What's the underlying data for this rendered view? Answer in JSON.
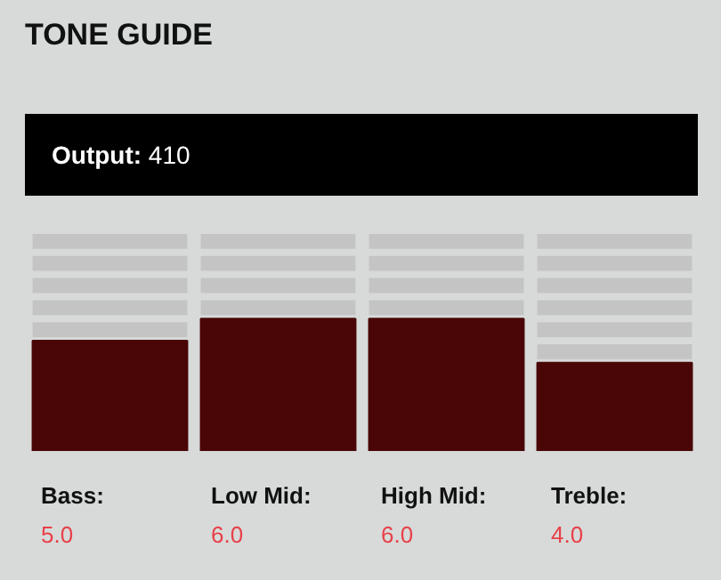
{
  "chart_data": {
    "type": "bar",
    "title": "TONE GUIDE",
    "annotations": [
      "Output: 410",
      ":"
    ],
    "categories": [
      "Bass",
      "Low Mid",
      "High Mid",
      "Treble"
    ],
    "values": [
      5,
      6,
      6,
      4
    ],
    "value_labels": [
      "5.0",
      "6.0",
      "6.0",
      "4.0"
    ],
    "color": "#4a0606",
    "ylim": [
      0,
      10
    ],
    "grid": "y",
    "tick_labels": "x"
  }
}
